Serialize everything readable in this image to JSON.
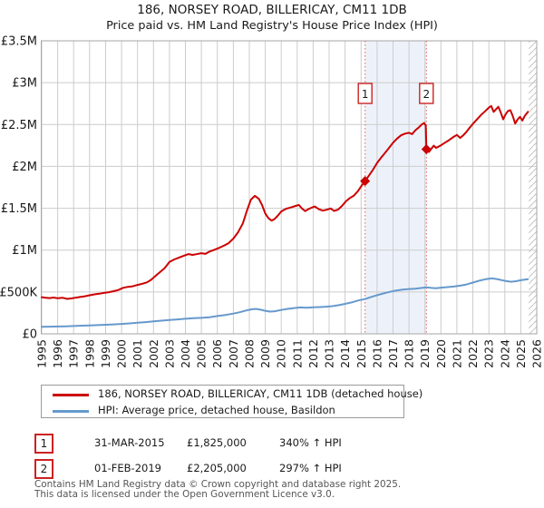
{
  "title": "186, NORSEY ROAD, BILLERICAY, CM11 1DB",
  "subtitle": "Price paid vs. HM Land Registry's House Price Index (HPI)",
  "footer": {
    "line1": "Contains HM Land Registry data © Crown copyright and database right 2025.",
    "line2": "This data is licensed under the Open Government Licence v3.0."
  },
  "chart_data": {
    "type": "line",
    "title": "186, NORSEY ROAD, BILLERICAY, CM11 1DB",
    "subtitle": "Price paid vs. HM Land Registry's House Price Index (HPI)",
    "x_axis": {
      "range": [
        1995,
        2026
      ],
      "ticks": [
        1995,
        1996,
        1997,
        1998,
        1999,
        2000,
        2001,
        2002,
        2003,
        2004,
        2005,
        2006,
        2007,
        2008,
        2009,
        2010,
        2011,
        2012,
        2013,
        2014,
        2015,
        2016,
        2017,
        2018,
        2019,
        2020,
        2021,
        2022,
        2023,
        2024,
        2025,
        2026
      ]
    },
    "y_axis": {
      "range": [
        0,
        3500000
      ],
      "tick_values": [
        0,
        500000,
        1000000,
        1500000,
        2000000,
        2500000,
        3000000,
        3500000
      ],
      "tick_labels": [
        "£0",
        "£500K",
        "£1M",
        "£1.5M",
        "£2M",
        "£2.5M",
        "£3M",
        "£3.5M"
      ]
    },
    "grid": true,
    "legend_position": "bottom",
    "shaded_span": [
      2015.25,
      2019.09
    ],
    "future_hatch_start": 2025.5,
    "colors": {
      "red": "#cc0000",
      "blue": "#6699cc",
      "dashed": "#e06060",
      "shade": "#edf2fa",
      "grid": "#cccccc",
      "border": "#a6a6a6",
      "hatch": "#bbbbbb",
      "marker_box_border": "#cc2222",
      "text": "#1a1a1a",
      "footer_text": "#555555"
    },
    "sales": [
      {
        "label": "1",
        "date": "31-MAR-2015",
        "x": 2015.25,
        "price": 1825000,
        "price_label": "£1,825,000",
        "hpi_label": "340% ↑ HPI"
      },
      {
        "label": "2",
        "date": "01-FEB-2019",
        "x": 2019.09,
        "price": 2205000,
        "price_label": "£2,205,000",
        "hpi_label": "297% ↑ HPI"
      }
    ],
    "series": [
      {
        "name": "186, NORSEY ROAD, BILLERICAY, CM11 1DB (detached house)",
        "color": "#cc0000",
        "points": [
          [
            1995.0,
            438000
          ],
          [
            1995.25,
            431000
          ],
          [
            1995.5,
            427000
          ],
          [
            1995.75,
            433000
          ],
          [
            1996.0,
            425000
          ],
          [
            1996.3,
            431000
          ],
          [
            1996.6,
            417000
          ],
          [
            1996.85,
            423000
          ],
          [
            1997.1,
            431000
          ],
          [
            1997.4,
            440000
          ],
          [
            1997.7,
            449000
          ],
          [
            1998.0,
            461000
          ],
          [
            1998.3,
            471000
          ],
          [
            1998.6,
            479000
          ],
          [
            1998.9,
            489000
          ],
          [
            1999.2,
            497000
          ],
          [
            1999.5,
            509000
          ],
          [
            1999.8,
            523000
          ],
          [
            2000.1,
            549000
          ],
          [
            2000.4,
            561000
          ],
          [
            2000.7,
            568000
          ],
          [
            2001.0,
            584000
          ],
          [
            2001.3,
            598000
          ],
          [
            2001.6,
            615000
          ],
          [
            2001.85,
            645000
          ],
          [
            2002.1,
            688000
          ],
          [
            2002.4,
            736000
          ],
          [
            2002.7,
            785000
          ],
          [
            2003.0,
            858000
          ],
          [
            2003.3,
            889000
          ],
          [
            2003.6,
            911000
          ],
          [
            2003.9,
            933000
          ],
          [
            2004.2,
            952000
          ],
          [
            2004.45,
            943000
          ],
          [
            2004.7,
            951000
          ],
          [
            2005.0,
            963000
          ],
          [
            2005.25,
            955000
          ],
          [
            2005.5,
            982000
          ],
          [
            2005.8,
            1003000
          ],
          [
            2006.1,
            1026000
          ],
          [
            2006.4,
            1052000
          ],
          [
            2006.7,
            1082000
          ],
          [
            2007.0,
            1138000
          ],
          [
            2007.3,
            1214000
          ],
          [
            2007.6,
            1320000
          ],
          [
            2007.85,
            1470000
          ],
          [
            2008.1,
            1603000
          ],
          [
            2008.35,
            1648000
          ],
          [
            2008.6,
            1612000
          ],
          [
            2008.8,
            1536000
          ],
          [
            2009.0,
            1437000
          ],
          [
            2009.2,
            1381000
          ],
          [
            2009.4,
            1352000
          ],
          [
            2009.6,
            1374000
          ],
          [
            2009.8,
            1415000
          ],
          [
            2010.0,
            1462000
          ],
          [
            2010.3,
            1494000
          ],
          [
            2010.6,
            1509000
          ],
          [
            2010.9,
            1528000
          ],
          [
            2011.1,
            1540000
          ],
          [
            2011.3,
            1496000
          ],
          [
            2011.5,
            1466000
          ],
          [
            2011.7,
            1489000
          ],
          [
            2011.9,
            1507000
          ],
          [
            2012.1,
            1521000
          ],
          [
            2012.35,
            1489000
          ],
          [
            2012.6,
            1471000
          ],
          [
            2012.85,
            1482000
          ],
          [
            2013.1,
            1497000
          ],
          [
            2013.3,
            1468000
          ],
          [
            2013.55,
            1482000
          ],
          [
            2013.8,
            1527000
          ],
          [
            2014.05,
            1583000
          ],
          [
            2014.3,
            1622000
          ],
          [
            2014.55,
            1651000
          ],
          [
            2014.8,
            1703000
          ],
          [
            2015.0,
            1762000
          ],
          [
            2015.25,
            1825000
          ],
          [
            2015.5,
            1893000
          ],
          [
            2015.75,
            1962000
          ],
          [
            2016.0,
            2042000
          ],
          [
            2016.25,
            2103000
          ],
          [
            2016.5,
            2162000
          ],
          [
            2016.75,
            2221000
          ],
          [
            2017.0,
            2283000
          ],
          [
            2017.25,
            2332000
          ],
          [
            2017.5,
            2371000
          ],
          [
            2017.75,
            2392000
          ],
          [
            2018.0,
            2401000
          ],
          [
            2018.2,
            2386000
          ],
          [
            2018.4,
            2432000
          ],
          [
            2018.6,
            2463000
          ],
          [
            2018.8,
            2501000
          ],
          [
            2018.95,
            2518000
          ],
          [
            2019.05,
            2488000
          ],
          [
            2019.09,
            2205000
          ],
          [
            2019.25,
            2173000
          ],
          [
            2019.4,
            2212000
          ],
          [
            2019.55,
            2247000
          ],
          [
            2019.7,
            2221000
          ],
          [
            2019.85,
            2236000
          ],
          [
            2020.0,
            2252000
          ],
          [
            2020.25,
            2283000
          ],
          [
            2020.5,
            2312000
          ],
          [
            2020.75,
            2347000
          ],
          [
            2021.0,
            2376000
          ],
          [
            2021.2,
            2341000
          ],
          [
            2021.4,
            2372000
          ],
          [
            2021.6,
            2413000
          ],
          [
            2021.8,
            2462000
          ],
          [
            2022.0,
            2507000
          ],
          [
            2022.25,
            2561000
          ],
          [
            2022.5,
            2612000
          ],
          [
            2022.75,
            2657000
          ],
          [
            2023.0,
            2703000
          ],
          [
            2023.15,
            2722000
          ],
          [
            2023.3,
            2652000
          ],
          [
            2023.45,
            2683000
          ],
          [
            2023.6,
            2712000
          ],
          [
            2023.75,
            2641000
          ],
          [
            2023.9,
            2562000
          ],
          [
            2024.05,
            2623000
          ],
          [
            2024.2,
            2662000
          ],
          [
            2024.35,
            2671000
          ],
          [
            2024.5,
            2601000
          ],
          [
            2024.65,
            2512000
          ],
          [
            2024.8,
            2561000
          ],
          [
            2024.95,
            2592000
          ],
          [
            2025.1,
            2547000
          ],
          [
            2025.25,
            2603000
          ],
          [
            2025.45,
            2652000
          ]
        ]
      },
      {
        "name": "HPI: Average price, detached house, Basildon",
        "color": "#6699cc",
        "points": [
          [
            1995.0,
            84000
          ],
          [
            1995.5,
            86000
          ],
          [
            1996.0,
            88000
          ],
          [
            1996.5,
            90000
          ],
          [
            1997.0,
            93000
          ],
          [
            1997.5,
            97000
          ],
          [
            1998.0,
            101000
          ],
          [
            1998.5,
            104000
          ],
          [
            1999.0,
            108000
          ],
          [
            1999.5,
            113000
          ],
          [
            2000.0,
            118000
          ],
          [
            2000.5,
            125000
          ],
          [
            2001.0,
            132000
          ],
          [
            2001.5,
            140000
          ],
          [
            2002.0,
            148000
          ],
          [
            2002.5,
            157000
          ],
          [
            2003.0,
            165000
          ],
          [
            2003.5,
            172000
          ],
          [
            2004.0,
            180000
          ],
          [
            2004.5,
            186000
          ],
          [
            2005.0,
            191000
          ],
          [
            2005.5,
            198000
          ],
          [
            2006.0,
            212000
          ],
          [
            2006.5,
            225000
          ],
          [
            2007.0,
            242000
          ],
          [
            2007.4,
            258000
          ],
          [
            2007.8,
            278000
          ],
          [
            2008.1,
            292000
          ],
          [
            2008.4,
            298000
          ],
          [
            2008.7,
            288000
          ],
          [
            2009.0,
            275000
          ],
          [
            2009.3,
            266000
          ],
          [
            2009.6,
            270000
          ],
          [
            2010.0,
            285000
          ],
          [
            2010.4,
            298000
          ],
          [
            2010.8,
            308000
          ],
          [
            2011.2,
            315000
          ],
          [
            2011.6,
            312000
          ],
          [
            2012.0,
            316000
          ],
          [
            2012.4,
            320000
          ],
          [
            2012.8,
            324000
          ],
          [
            2013.2,
            330000
          ],
          [
            2013.6,
            342000
          ],
          [
            2014.0,
            358000
          ],
          [
            2014.4,
            375000
          ],
          [
            2014.8,
            398000
          ],
          [
            2015.25,
            415000
          ],
          [
            2015.6,
            438000
          ],
          [
            2016.0,
            462000
          ],
          [
            2016.4,
            482000
          ],
          [
            2016.8,
            502000
          ],
          [
            2017.2,
            518000
          ],
          [
            2017.6,
            528000
          ],
          [
            2018.0,
            535000
          ],
          [
            2018.4,
            540000
          ],
          [
            2018.8,
            548000
          ],
          [
            2019.09,
            555000
          ],
          [
            2019.4,
            548000
          ],
          [
            2019.7,
            545000
          ],
          [
            2020.0,
            552000
          ],
          [
            2020.4,
            558000
          ],
          [
            2020.8,
            565000
          ],
          [
            2021.2,
            575000
          ],
          [
            2021.6,
            590000
          ],
          [
            2022.0,
            612000
          ],
          [
            2022.4,
            635000
          ],
          [
            2022.8,
            652000
          ],
          [
            2023.2,
            662000
          ],
          [
            2023.5,
            655000
          ],
          [
            2023.8,
            642000
          ],
          [
            2024.1,
            630000
          ],
          [
            2024.4,
            622000
          ],
          [
            2024.7,
            628000
          ],
          [
            2025.0,
            640000
          ],
          [
            2025.45,
            652000
          ]
        ]
      }
    ]
  }
}
